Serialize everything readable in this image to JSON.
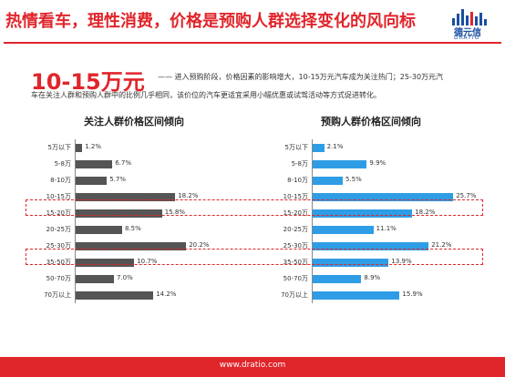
{
  "header": {
    "title": "热情看车，理性消费，价格是预购人群选择变化的风向标",
    "logo_text": "德元信",
    "logo_sub": "DRATIO"
  },
  "summary": {
    "headline": "10-15万元",
    "line1": "—— 进入预购阶段，价格因素的影响增大，10-15万元汽车成为关注热门；25-30万元汽",
    "line2": "车在关注人群和预购人群中的比例几乎相同，该价位的汽车更适宜采用小幅优惠或试驾活动等方式促进转化。"
  },
  "footer": {
    "url": "www.dratio.com"
  },
  "colors": {
    "accent": "#e0252b",
    "attention_bar": "#555555",
    "prebuy_bar": "#2f9de6"
  },
  "chart_data": [
    {
      "type": "bar",
      "orientation": "horizontal",
      "title": "关注人群价格区间倾向",
      "categories": [
        "5万以下",
        "5-8万",
        "8-10万",
        "10-15万",
        "15-20万",
        "20-25万",
        "25-30万",
        "35-50万",
        "50-70万",
        "70万以上"
      ],
      "values": [
        1.2,
        6.7,
        5.7,
        18.2,
        15.8,
        8.5,
        20.2,
        10.7,
        7.0,
        14.2
      ],
      "value_labels": [
        "1.2%",
        "6.7%",
        "5.7%",
        "18.2%",
        "15.8%",
        "8.5%",
        "20.2%",
        "10.7%",
        "7.0%",
        "14.2%"
      ],
      "highlighted": [
        "10-15万",
        "25-30万"
      ]
    },
    {
      "type": "bar",
      "orientation": "horizontal",
      "title": "预购人群价格区间倾向",
      "categories": [
        "5万以下",
        "5-8万",
        "8-10万",
        "10-15万",
        "15-20万",
        "20-25万",
        "25-30万",
        "35-50万",
        "50-70万",
        "70万以上"
      ],
      "values": [
        2.1,
        9.9,
        5.5,
        25.7,
        18.2,
        11.1,
        21.2,
        13.9,
        8.9,
        15.9
      ],
      "value_labels": [
        "2.1%",
        "9.9%",
        "5.5%",
        "25.7%",
        "18.2%",
        "11.1%",
        "21.2%",
        "13.9%",
        "8.9%",
        "15.9%"
      ],
      "highlighted": [
        "10-15万",
        "25-30万"
      ]
    }
  ]
}
